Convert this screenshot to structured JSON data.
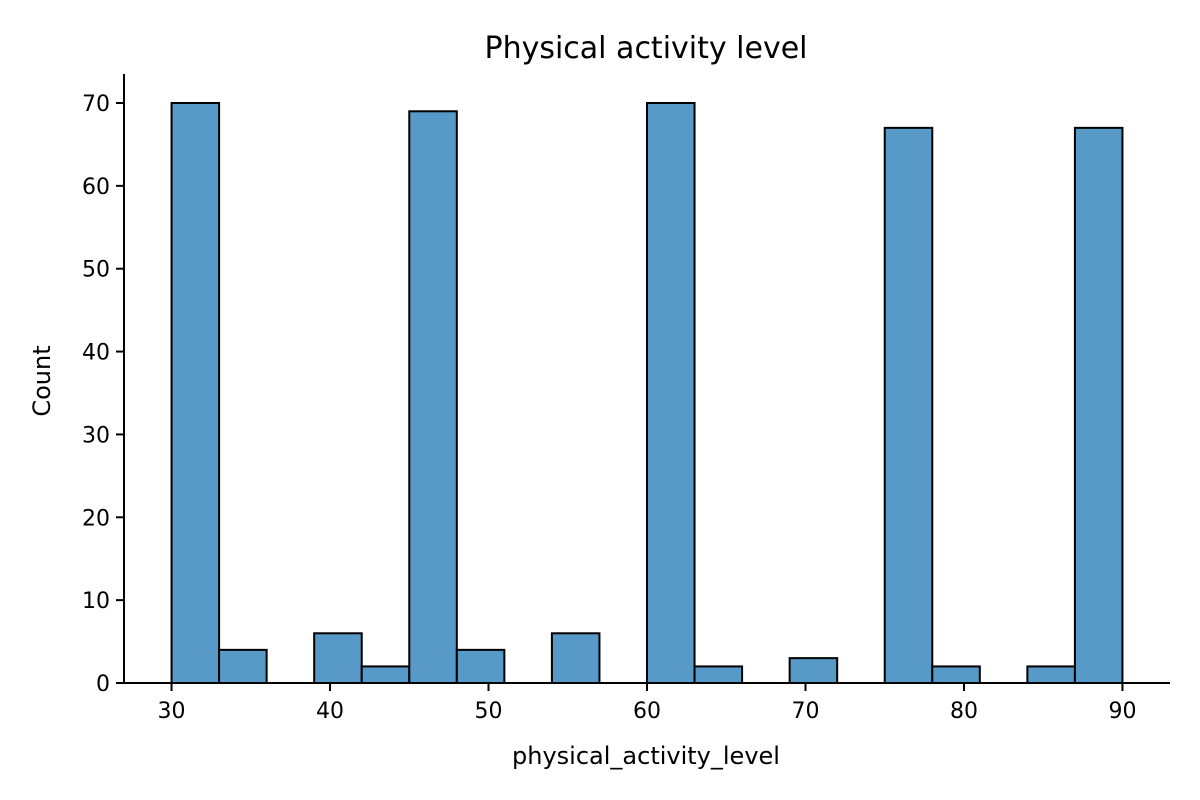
{
  "chart_data": {
    "type": "bar",
    "title": "Physical activity level",
    "xlabel": "physical_activity_level",
    "ylabel": "Count",
    "xlim": [
      27,
      93
    ],
    "ylim": [
      0,
      73.5
    ],
    "xticks": [
      30,
      40,
      50,
      60,
      70,
      80,
      90
    ],
    "yticks": [
      0,
      10,
      20,
      30,
      40,
      50,
      60,
      70
    ],
    "bins": [
      {
        "start": 30,
        "end": 33,
        "count": 70
      },
      {
        "start": 33,
        "end": 36,
        "count": 4
      },
      {
        "start": 36,
        "end": 39,
        "count": 0
      },
      {
        "start": 39,
        "end": 42,
        "count": 6
      },
      {
        "start": 42,
        "end": 45,
        "count": 2
      },
      {
        "start": 45,
        "end": 48,
        "count": 69
      },
      {
        "start": 48,
        "end": 51,
        "count": 4
      },
      {
        "start": 51,
        "end": 54,
        "count": 0
      },
      {
        "start": 54,
        "end": 57,
        "count": 6
      },
      {
        "start": 57,
        "end": 60,
        "count": 0
      },
      {
        "start": 60,
        "end": 63,
        "count": 70
      },
      {
        "start": 63,
        "end": 66,
        "count": 2
      },
      {
        "start": 66,
        "end": 69,
        "count": 0
      },
      {
        "start": 69,
        "end": 72,
        "count": 3
      },
      {
        "start": 72,
        "end": 75,
        "count": 0
      },
      {
        "start": 75,
        "end": 78,
        "count": 67
      },
      {
        "start": 78,
        "end": 81,
        "count": 2
      },
      {
        "start": 81,
        "end": 84,
        "count": 0
      },
      {
        "start": 84,
        "end": 87,
        "count": 2
      },
      {
        "start": 87,
        "end": 90,
        "count": 67
      }
    ],
    "grid": false,
    "colors": {
      "bar_fill": "#5799c7",
      "bar_edge": "#000000",
      "axis": "#000000"
    }
  }
}
